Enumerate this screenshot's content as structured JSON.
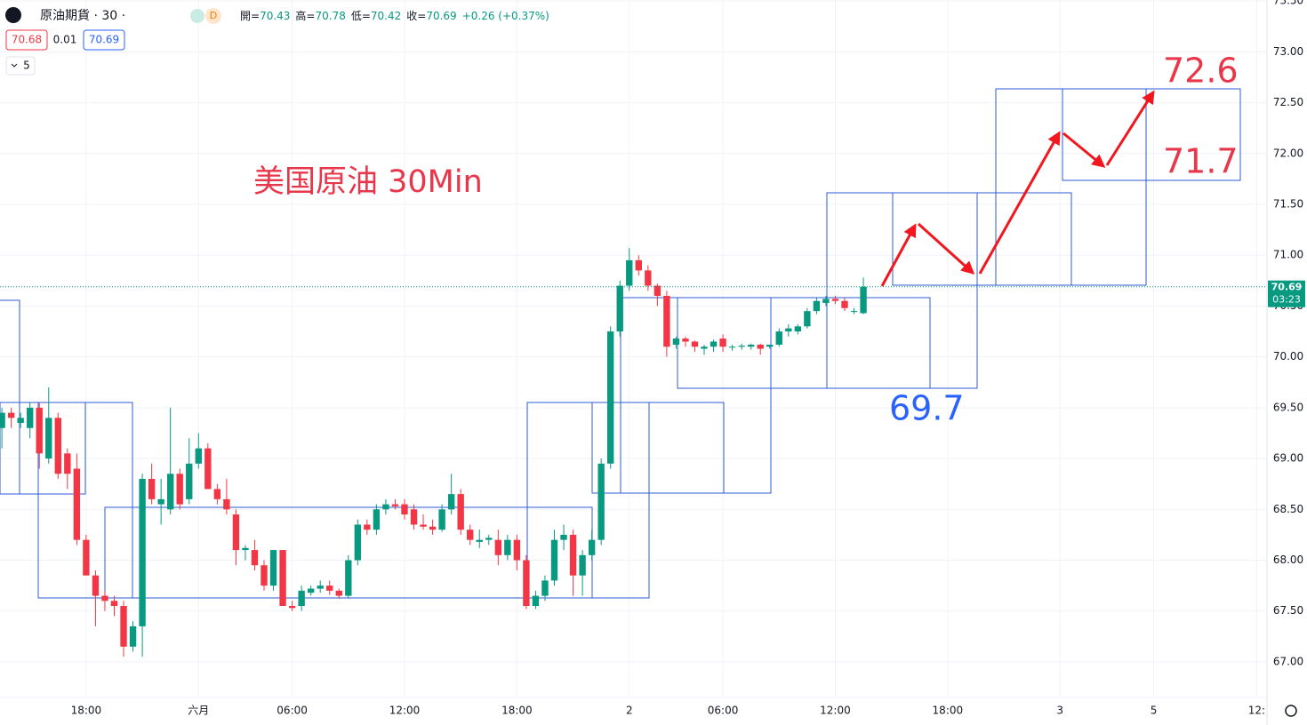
{
  "header": {
    "symbol": "原油期貨 · 30 ·",
    "badge": "D",
    "ohlc": [
      {
        "label": "開=",
        "value": "70.43"
      },
      {
        "label": "高=",
        "value": "70.78"
      },
      {
        "label": "低=",
        "value": "70.42"
      },
      {
        "label": "收=",
        "value": "70.69"
      }
    ],
    "change": "+0.26 (+0.37%)",
    "buttons": [
      "70.68",
      "0.01",
      "70.69"
    ],
    "interval": "5"
  },
  "chart_data": {
    "type": "candlestick",
    "up_color": "#089981",
    "down_color": "#f23645",
    "grid": true,
    "ylim": [
      66.65,
      73.51
    ],
    "yticks": [
      {
        "value": 67,
        "label": "67.00"
      },
      {
        "value": 67.5,
        "label": "67.50"
      },
      {
        "value": 68,
        "label": "68.00"
      },
      {
        "value": 68.5,
        "label": "68.50"
      },
      {
        "value": 69,
        "label": "69.00"
      },
      {
        "value": 69.5,
        "label": "69.50"
      },
      {
        "value": 70,
        "label": "70.00"
      },
      {
        "value": 70.5,
        "label": "70.50"
      },
      {
        "value": 71,
        "label": "71.00"
      },
      {
        "value": 71.5,
        "label": "71.50"
      },
      {
        "value": 72,
        "label": "72.00"
      },
      {
        "value": 72.5,
        "label": "72.50"
      },
      {
        "value": 73,
        "label": "73.00"
      },
      {
        "value": 73.5,
        "label": "73.50"
      }
    ],
    "xlim": [
      -0.2,
      135.1
    ],
    "xticks": [
      {
        "value": 9,
        "label": "18:00"
      },
      {
        "value": 21,
        "label": "六月"
      },
      {
        "value": 31,
        "label": "06:00"
      },
      {
        "value": 43,
        "label": "12:00"
      },
      {
        "value": 55,
        "label": "18:00"
      },
      {
        "value": 67,
        "label": "2"
      },
      {
        "value": 77,
        "label": "06:00"
      },
      {
        "value": 89,
        "label": "12:00"
      },
      {
        "value": 101,
        "label": "18:00"
      },
      {
        "value": 113,
        "label": "3"
      },
      {
        "value": 123,
        "label": "5"
      },
      {
        "value": 134,
        "label": "12:"
      }
    ],
    "last_price": 70.69,
    "countdown": "03:23",
    "annotations": [
      {
        "text": "美国原油 30Min",
        "color": "#e8364a"
      },
      {
        "text": "72.6",
        "color": "#e8364a"
      },
      {
        "text": "71.7",
        "color": "#e8364a"
      },
      {
        "text": "69.7",
        "color": "#2962ff"
      }
    ],
    "ohlc": [
      [
        69.3,
        69.5,
        69.1,
        69.45
      ],
      [
        69.45,
        69.5,
        69.3,
        69.4
      ],
      [
        69.35,
        69.45,
        69.3,
        69.4
      ],
      [
        69.3,
        69.55,
        69.2,
        69.5
      ],
      [
        69.5,
        69.55,
        68.9,
        69.05
      ],
      [
        69.0,
        69.7,
        68.95,
        69.4
      ],
      [
        69.4,
        69.45,
        68.8,
        68.85
      ],
      [
        69.05,
        69.1,
        68.7,
        68.85
      ],
      [
        68.9,
        69.05,
        68.15,
        68.2
      ],
      [
        68.2,
        68.25,
        67.85,
        67.85
      ],
      [
        67.85,
        67.9,
        67.35,
        67.65
      ],
      [
        67.65,
        67.7,
        67.5,
        67.6
      ],
      [
        67.6,
        67.65,
        67.45,
        67.55
      ],
      [
        67.55,
        67.6,
        67.05,
        67.15
      ],
      [
        67.15,
        67.4,
        67.1,
        67.35
      ],
      [
        67.35,
        68.85,
        67.05,
        68.8
      ],
      [
        68.8,
        68.95,
        68.55,
        68.6
      ],
      [
        68.55,
        68.8,
        68.35,
        68.6
      ],
      [
        68.5,
        69.5,
        68.45,
        68.85
      ],
      [
        68.85,
        68.9,
        68.5,
        68.55
      ],
      [
        68.6,
        69.2,
        68.55,
        68.95
      ],
      [
        68.95,
        69.25,
        68.9,
        69.1
      ],
      [
        69.1,
        69.15,
        68.7,
        68.7
      ],
      [
        68.7,
        68.75,
        68.55,
        68.6
      ],
      [
        68.6,
        68.8,
        68.45,
        68.5
      ],
      [
        68.45,
        68.5,
        67.95,
        68.1
      ],
      [
        68.1,
        68.15,
        68.0,
        68.12
      ],
      [
        68.1,
        68.2,
        67.9,
        67.95
      ],
      [
        67.95,
        68.0,
        67.7,
        67.75
      ],
      [
        67.75,
        68.1,
        67.7,
        68.1
      ],
      [
        68.1,
        68.1,
        67.55,
        67.55
      ],
      [
        67.55,
        67.6,
        67.5,
        67.53
      ],
      [
        67.55,
        67.75,
        67.5,
        67.7
      ],
      [
        67.68,
        67.75,
        67.65,
        67.72
      ],
      [
        67.72,
        67.8,
        67.68,
        67.75
      ],
      [
        67.75,
        67.8,
        67.66,
        67.7
      ],
      [
        67.7,
        67.72,
        67.62,
        67.65
      ],
      [
        67.65,
        68.05,
        67.63,
        68.0
      ],
      [
        68.0,
        68.4,
        67.95,
        68.35
      ],
      [
        68.35,
        68.4,
        68.25,
        68.3
      ],
      [
        68.3,
        68.55,
        68.25,
        68.5
      ],
      [
        68.5,
        68.6,
        68.45,
        68.55
      ],
      [
        68.55,
        68.6,
        68.5,
        68.53
      ],
      [
        68.55,
        68.6,
        68.4,
        68.45
      ],
      [
        68.5,
        68.55,
        68.3,
        68.35
      ],
      [
        68.35,
        68.45,
        68.3,
        68.33
      ],
      [
        68.33,
        68.4,
        68.25,
        68.3
      ],
      [
        68.3,
        68.55,
        68.28,
        68.5
      ],
      [
        68.5,
        68.85,
        68.45,
        68.65
      ],
      [
        68.65,
        68.7,
        68.25,
        68.3
      ],
      [
        68.3,
        68.35,
        68.15,
        68.2
      ],
      [
        68.18,
        68.3,
        68.12,
        68.2
      ],
      [
        68.2,
        68.25,
        68.15,
        68.22
      ],
      [
        68.2,
        68.3,
        67.95,
        68.05
      ],
      [
        68.05,
        68.25,
        68.0,
        68.2
      ],
      [
        68.2,
        68.25,
        67.9,
        68.0
      ],
      [
        68.0,
        68.05,
        67.52,
        67.55
      ],
      [
        67.55,
        67.7,
        67.52,
        67.65
      ],
      [
        67.65,
        67.85,
        67.6,
        67.8
      ],
      [
        67.8,
        68.3,
        67.75,
        68.2
      ],
      [
        68.2,
        68.35,
        68.1,
        68.25
      ],
      [
        68.25,
        68.3,
        67.65,
        67.85
      ],
      [
        67.85,
        68.1,
        67.65,
        68.05
      ],
      [
        68.05,
        68.3,
        68.0,
        68.2
      ],
      [
        68.2,
        69.0,
        68.15,
        68.95
      ],
      [
        68.95,
        70.3,
        68.9,
        70.25
      ],
      [
        70.25,
        70.75,
        70.2,
        70.7
      ],
      [
        70.7,
        71.07,
        70.65,
        70.95
      ],
      [
        70.95,
        71.0,
        70.8,
        70.85
      ],
      [
        70.85,
        70.9,
        70.65,
        70.7
      ],
      [
        70.7,
        70.72,
        70.5,
        70.6
      ],
      [
        70.6,
        70.65,
        70.0,
        70.1
      ],
      [
        70.12,
        70.2,
        70.08,
        70.18
      ],
      [
        70.18,
        70.2,
        70.1,
        70.15
      ],
      [
        70.15,
        70.16,
        70.05,
        70.1
      ],
      [
        70.08,
        70.12,
        70.02,
        70.1
      ],
      [
        70.1,
        70.17,
        70.05,
        70.15
      ],
      [
        70.18,
        70.22,
        70.05,
        70.1
      ],
      [
        70.1,
        70.12,
        70.06,
        70.1
      ],
      [
        70.1,
        70.13,
        70.07,
        70.11
      ],
      [
        70.1,
        70.13,
        70.07,
        70.12
      ],
      [
        70.12,
        70.13,
        70.02,
        70.08
      ],
      [
        70.1,
        70.12,
        70.08,
        70.12
      ],
      [
        70.12,
        70.28,
        70.1,
        70.25
      ],
      [
        70.25,
        70.32,
        70.2,
        70.28
      ],
      [
        70.25,
        70.32,
        70.22,
        70.3
      ],
      [
        70.3,
        70.48,
        70.28,
        70.45
      ],
      [
        70.45,
        70.58,
        70.42,
        70.55
      ],
      [
        70.53,
        70.6,
        70.5,
        70.57
      ],
      [
        70.57,
        70.6,
        70.52,
        70.55
      ],
      [
        70.55,
        70.58,
        70.45,
        70.48
      ],
      [
        70.45,
        70.48,
        70.42,
        70.45
      ],
      [
        70.43,
        70.78,
        70.42,
        70.69
      ]
    ]
  }
}
